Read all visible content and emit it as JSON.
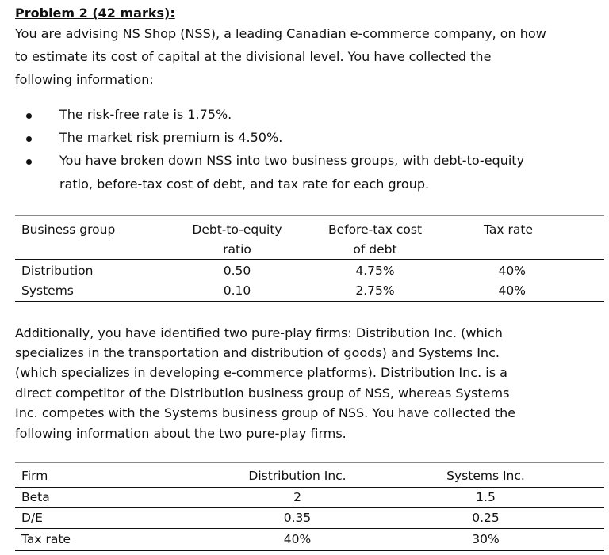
{
  "problem": {
    "title": "Problem 2 (42 marks):",
    "intro": [
      "You are advising NS Shop (NSS), a leading Canadian e-commerce company, on how",
      "to estimate its cost of capital at the divisional level. You have collected the",
      "following information:"
    ],
    "bullets": [
      [
        "The risk-free rate is 1.75%."
      ],
      [
        "The market risk premium is 4.50%."
      ],
      [
        "You have broken down NSS into two business groups, with debt-to-equity",
        "ratio, before-tax cost of debt, and tax rate for each group."
      ]
    ]
  },
  "table1": {
    "headers": {
      "group": "Business group",
      "de_1": "Debt-to-equity",
      "de_2": "ratio",
      "cost_1": "Before-tax cost",
      "cost_2": "of debt",
      "tax": "Tax rate"
    },
    "rows": [
      {
        "group": "Distribution",
        "de": "0.50",
        "cost": "4.75%",
        "tax": "40%"
      },
      {
        "group": "Systems",
        "de": "0.10",
        "cost": "2.75%",
        "tax": "40%"
      }
    ]
  },
  "additional": [
    "Additionally, you have identified two pure-play firms: Distribution Inc. (which",
    "specializes in the transportation and distribution of goods) and Systems Inc.",
    "(which specializes in developing e-commerce platforms). Distribution Inc. is a",
    "direct competitor of the Distribution business group of NSS, whereas Systems",
    "Inc. competes with the Systems business group of NSS. You have collected the",
    "following information about the two pure-play firms."
  ],
  "table2": {
    "headers": {
      "firm": "Firm",
      "dist": "Distribution Inc.",
      "sys": "Systems Inc."
    },
    "rows": [
      {
        "label": "Beta",
        "dist": "2",
        "sys": "1.5"
      },
      {
        "label": "D/E",
        "dist": "0.35",
        "sys": "0.25"
      },
      {
        "label": "Tax rate",
        "dist": "40%",
        "sys": "30%"
      }
    ]
  }
}
